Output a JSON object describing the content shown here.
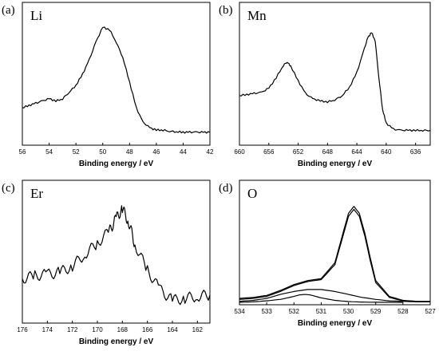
{
  "chart_data": [
    {
      "type": "line",
      "panel_label": "(a)",
      "element": "Li",
      "xlabel": "Binding energy / eV",
      "x_reversed": true,
      "xlim": [
        56,
        42
      ],
      "xticks": [
        56,
        54,
        52,
        50,
        48,
        46,
        44,
        42
      ],
      "ylim": [
        0,
        1
      ],
      "series": [
        {
          "x": [
            56,
            55.5,
            55,
            54.5,
            54,
            53.5,
            53,
            52.5,
            52,
            51.5,
            51,
            50.5,
            50,
            49.5,
            49,
            48.5,
            48,
            47.5,
            47,
            46.5,
            46,
            45.5,
            45,
            44.5,
            44,
            43.5,
            43,
            42.5,
            42
          ],
          "y": [
            0.25,
            0.27,
            0.29,
            0.31,
            0.33,
            0.31,
            0.33,
            0.39,
            0.45,
            0.55,
            0.68,
            0.84,
            0.97,
            0.95,
            0.84,
            0.7,
            0.48,
            0.25,
            0.12,
            0.07,
            0.05,
            0.05,
            0.04,
            0.035,
            0.03,
            0.03,
            0.03,
            0.03,
            0.03
          ]
        }
      ]
    },
    {
      "type": "line",
      "panel_label": "(b)",
      "element": "Mn",
      "xlabel": "Binding energy / eV",
      "x_reversed": true,
      "xlim": [
        660,
        634
      ],
      "xticks": [
        660,
        656,
        652,
        648,
        644,
        640,
        636
      ],
      "ylim": [
        0,
        1
      ],
      "series": [
        {
          "x": [
            660,
            659,
            658,
            657,
            656,
            655,
            654,
            653.5,
            653,
            652,
            651,
            650,
            649,
            648,
            647,
            646,
            645,
            644,
            643,
            642.5,
            642,
            641.5,
            641,
            640.5,
            640,
            639,
            638,
            637,
            636,
            635,
            634
          ],
          "y": [
            0.38,
            0.39,
            0.4,
            0.41,
            0.45,
            0.55,
            0.67,
            0.7,
            0.66,
            0.52,
            0.4,
            0.35,
            0.33,
            0.32,
            0.34,
            0.38,
            0.46,
            0.6,
            0.82,
            0.93,
            0.98,
            0.9,
            0.55,
            0.25,
            0.12,
            0.06,
            0.05,
            0.05,
            0.05,
            0.05,
            0.05
          ]
        }
      ]
    },
    {
      "type": "line",
      "panel_label": "(c)",
      "element": "Er",
      "xlabel": "Binding energy / eV",
      "x_reversed": true,
      "xlim": [
        176,
        161
      ],
      "xticks": [
        176,
        174,
        172,
        170,
        168,
        166,
        164,
        162
      ],
      "ylim": [
        0,
        1
      ],
      "series": [
        {
          "x": [
            176,
            175,
            174,
            173,
            172,
            171,
            170,
            169,
            168.5,
            168,
            167.5,
            167,
            166,
            165,
            164,
            163,
            162,
            161
          ],
          "y": [
            0.3,
            0.33,
            0.34,
            0.36,
            0.42,
            0.53,
            0.63,
            0.75,
            0.86,
            0.95,
            0.83,
            0.62,
            0.38,
            0.2,
            0.1,
            0.12,
            0.14,
            0.15
          ]
        }
      ]
    },
    {
      "type": "line",
      "panel_label": "(d)",
      "element": "O",
      "xlabel": "Binding energy / eV",
      "x_reversed": true,
      "xlim": [
        534,
        527
      ],
      "xticks": [
        534,
        533,
        532,
        531,
        530,
        529,
        528,
        527
      ],
      "ylim": [
        0,
        1
      ],
      "series": [
        {
          "x": [
            534,
            533.5,
            533,
            532.5,
            532,
            531.5,
            531,
            530.5,
            530.2,
            530,
            529.8,
            529.6,
            529.4,
            529.2,
            529,
            528.5,
            528,
            527.5,
            527
          ],
          "y": [
            0.04,
            0.05,
            0.07,
            0.12,
            0.18,
            0.22,
            0.24,
            0.4,
            0.7,
            0.9,
            0.97,
            0.9,
            0.7,
            0.45,
            0.22,
            0.06,
            0.02,
            0.01,
            0.01
          ]
        },
        {
          "x": [
            534,
            533.5,
            533,
            532.5,
            532,
            531.5,
            531,
            530.5,
            530.2,
            530,
            529.8,
            529.6,
            529.4,
            529.2,
            529,
            528.5,
            528,
            527.5,
            527
          ],
          "y": [
            0.03,
            0.04,
            0.06,
            0.11,
            0.17,
            0.21,
            0.23,
            0.38,
            0.67,
            0.87,
            0.94,
            0.87,
            0.67,
            0.42,
            0.2,
            0.05,
            0.015,
            0.01,
            0.01
          ]
        },
        {
          "x": [
            534,
            533.5,
            533,
            532.5,
            532,
            531.5,
            531,
            530.5,
            530,
            529.5,
            529,
            528.5,
            528,
            527.5,
            527
          ],
          "y": [
            0.01,
            0.02,
            0.04,
            0.08,
            0.11,
            0.13,
            0.13,
            0.11,
            0.08,
            0.05,
            0.03,
            0.015,
            0.01,
            0.005,
            0.005
          ]
        },
        {
          "x": [
            534,
            533.5,
            533,
            532.5,
            532,
            531.8,
            531.6,
            531.4,
            531.2,
            531,
            530.5,
            530,
            529.5,
            529,
            528
          ],
          "y": [
            0.0,
            0.005,
            0.015,
            0.03,
            0.06,
            0.075,
            0.08,
            0.075,
            0.06,
            0.045,
            0.02,
            0.008,
            0.003,
            0.001,
            0.0
          ]
        }
      ]
    }
  ]
}
